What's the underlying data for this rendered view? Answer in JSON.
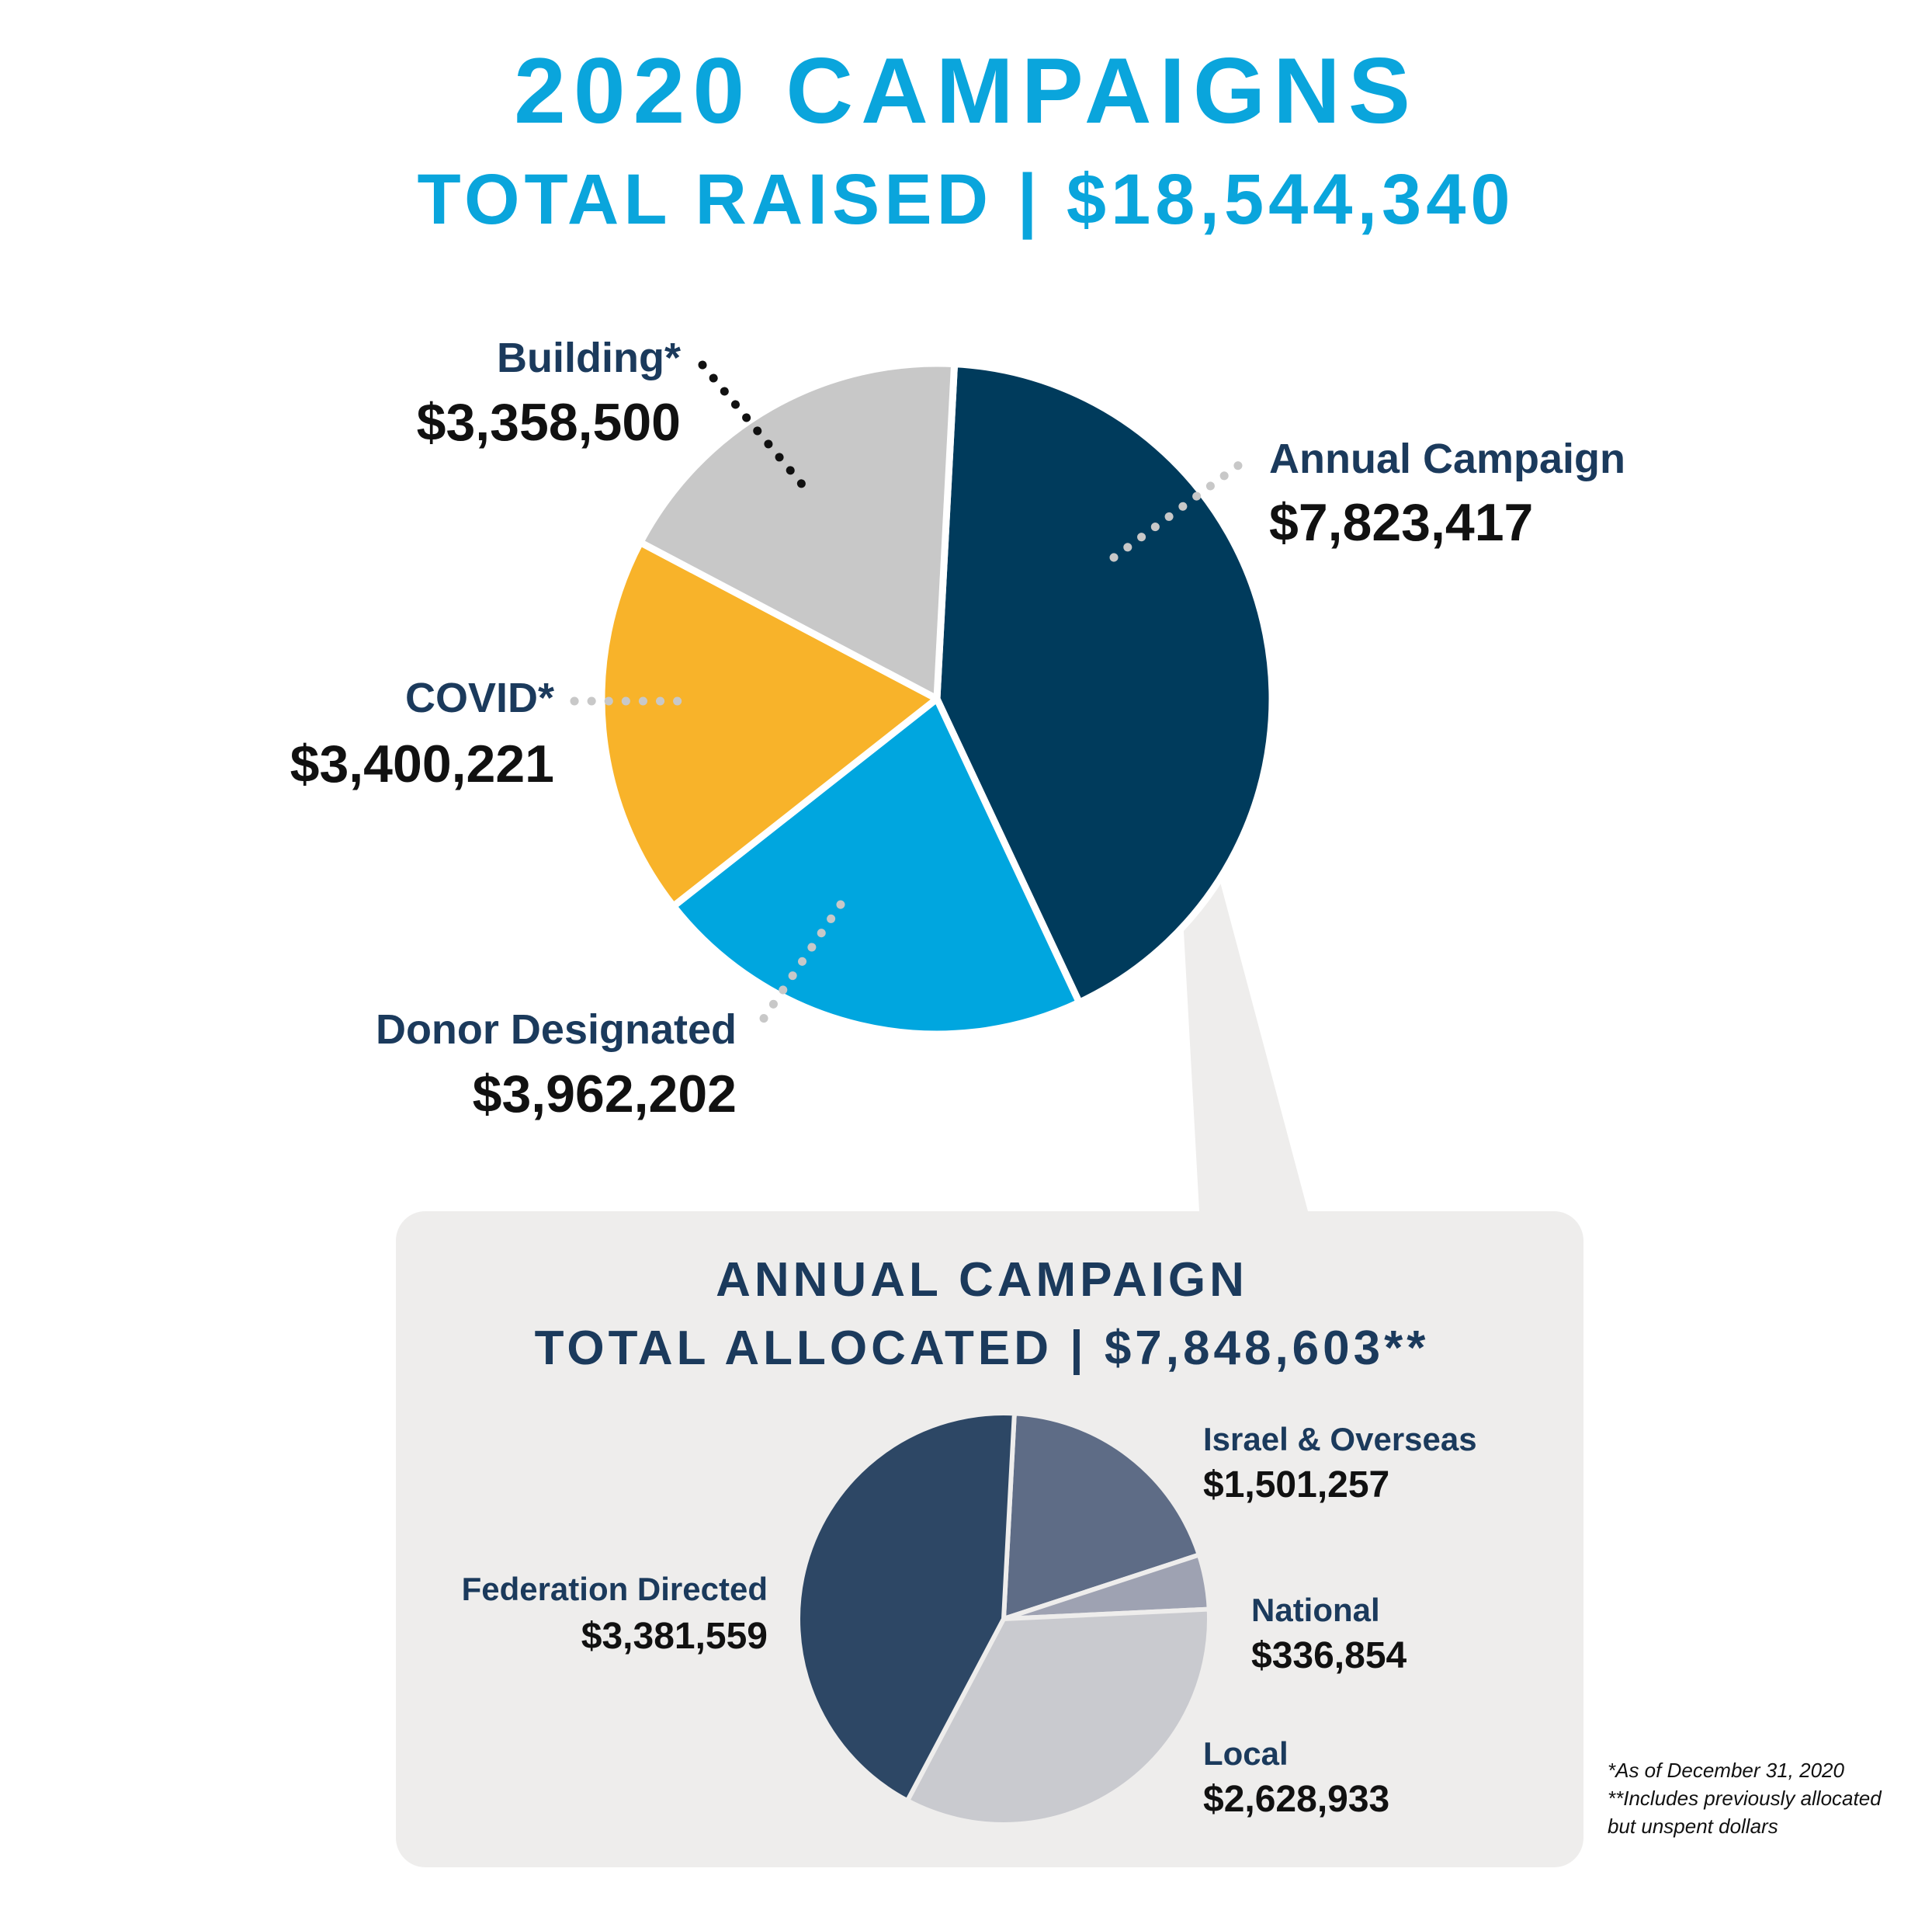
{
  "header": {
    "title": "2020 CAMPAIGNS",
    "subtitle": "TOTAL RAISED | $18,544,340"
  },
  "callout": {
    "line1": "ANNUAL CAMPAIGN",
    "line2": "TOTAL ALLOCATED | $7,848,603**"
  },
  "footnotes": {
    "line1": "*As of December 31, 2020",
    "line2": "**Includes previously allocated",
    "line3": "but unspent dollars"
  },
  "chart_data": [
    {
      "type": "pie",
      "title": "2020 CAMPAIGNS",
      "subtitle": "TOTAL RAISED | $18,544,340",
      "slices": [
        {
          "name": "Annual Campaign",
          "value": 7823417,
          "label": "$7,823,417",
          "color": "#003b5c"
        },
        {
          "name": "Donor Designated",
          "value": 3962202,
          "label": "$3,962,202",
          "color": "#00a6df"
        },
        {
          "name": "COVID*",
          "value": 3400221,
          "label": "$3,400,221",
          "color": "#f8b32a"
        },
        {
          "name": "Building*",
          "value": 3358500,
          "label": "$3,358,500",
          "color": "#c8c8c8"
        }
      ]
    },
    {
      "type": "pie",
      "title": "ANNUAL CAMPAIGN",
      "subtitle": "TOTAL ALLOCATED | $7,848,603**",
      "slices": [
        {
          "name": "Israel & Overseas",
          "value": 1501257,
          "label": "$1,501,257",
          "color": "#5e6c86"
        },
        {
          "name": "National",
          "value": 336854,
          "label": "$336,854",
          "color": "#9ea2b2"
        },
        {
          "name": "Local",
          "value": 2628933,
          "label": "$2,628,933",
          "color": "#c9cacf"
        },
        {
          "name": "Federation Directed",
          "value": 3381559,
          "label": "$3,381,559",
          "color": "#2d4765"
        }
      ]
    }
  ]
}
